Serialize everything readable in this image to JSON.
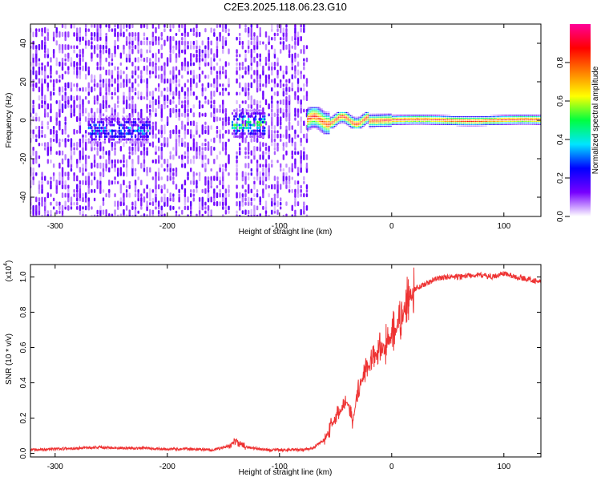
{
  "title": "C2E3.2025.118.06.23.G10",
  "chart_data": [
    {
      "type": "heatmap",
      "panel": "spectrogram",
      "xlabel": "Height of straight line (km)",
      "ylabel": "Frequency (Hz)",
      "xlim": [
        -322,
        133
      ],
      "ylim": [
        -50,
        50
      ],
      "x_ticks": [
        -300,
        -200,
        -100,
        0,
        100
      ],
      "x_tick_labels": [
        "-300",
        "-200",
        "-100",
        "0",
        "100"
      ],
      "y_ticks": [
        -40,
        -20,
        0,
        20,
        40
      ],
      "y_tick_labels": [
        "-40",
        "-20",
        "0",
        "20",
        "40"
      ],
      "colorbar": {
        "label": "Normalized spectral amplitude",
        "range": [
          0,
          1
        ],
        "ticks": [
          0.0,
          0.2,
          0.4,
          0.6,
          0.8
        ],
        "tick_labels": [
          "0.0",
          "0.2",
          "0.4",
          "0.6",
          "0.8"
        ],
        "colors": [
          "#ffffff",
          "#7700ff",
          "#0000ff",
          "#00e5ff",
          "#00ff40",
          "#ffff00",
          "#ff7f00",
          "#ff0000",
          "#ff0099"
        ]
      },
      "regions": [
        {
          "x_range": [
            -322,
            -145
          ],
          "description_level": "noise",
          "amplitude": 0.12
        },
        {
          "x_range": [
            -138,
            -75
          ],
          "description_level": "noise",
          "amplitude": 0.12
        },
        {
          "x_range": [
            -270,
            -215
          ],
          "center_freq": -5,
          "amplitude": 0.3
        },
        {
          "x_range": [
            -142,
            -112
          ],
          "center_freq": -2,
          "amplitude": 0.45
        },
        {
          "x_range": [
            -75,
            133
          ],
          "center_freq": 0,
          "amplitude": 0.95
        }
      ]
    },
    {
      "type": "line",
      "panel": "snr",
      "xlabel": "Height of straight line (km)",
      "ylabel": "SNR (10 * v/v)",
      "scale_note": "(x10",
      "scale_exponent": "4",
      "xlim": [
        -322,
        133
      ],
      "ylim": [
        -0.02,
        1.07
      ],
      "x_ticks": [
        -300,
        -200,
        -100,
        0,
        100
      ],
      "x_tick_labels": [
        "-300",
        "-200",
        "-100",
        "0",
        "100"
      ],
      "y_ticks": [
        0.0,
        0.2,
        0.4,
        0.6,
        0.8,
        1.0
      ],
      "y_tick_labels": [
        "0.0",
        "0.2",
        "0.4",
        "0.6",
        "0.8",
        "1.0"
      ],
      "series": [
        {
          "color": "#ee3333",
          "x": [
            -322,
            -300,
            -280,
            -260,
            -240,
            -220,
            -200,
            -180,
            -160,
            -145,
            -140,
            -135,
            -125,
            -110,
            -90,
            -80,
            -70,
            -60,
            -50,
            -45,
            -40,
            -35,
            -30,
            -25,
            -20,
            -15,
            -10,
            -5,
            0,
            5,
            10,
            15,
            20,
            30,
            40,
            50,
            60,
            70,
            80,
            90,
            100,
            110,
            120,
            133
          ],
          "y": [
            0.02,
            0.025,
            0.03,
            0.035,
            0.03,
            0.03,
            0.025,
            0.025,
            0.02,
            0.04,
            0.07,
            0.05,
            0.03,
            0.02,
            0.02,
            0.02,
            0.03,
            0.08,
            0.2,
            0.25,
            0.3,
            0.18,
            0.35,
            0.45,
            0.5,
            0.55,
            0.58,
            0.62,
            0.66,
            0.72,
            0.8,
            0.88,
            0.93,
            0.96,
            0.99,
            1.0,
            1.0,
            1.01,
            1.01,
            1.0,
            1.02,
            1.0,
            0.99,
            0.97
          ]
        }
      ]
    }
  ]
}
